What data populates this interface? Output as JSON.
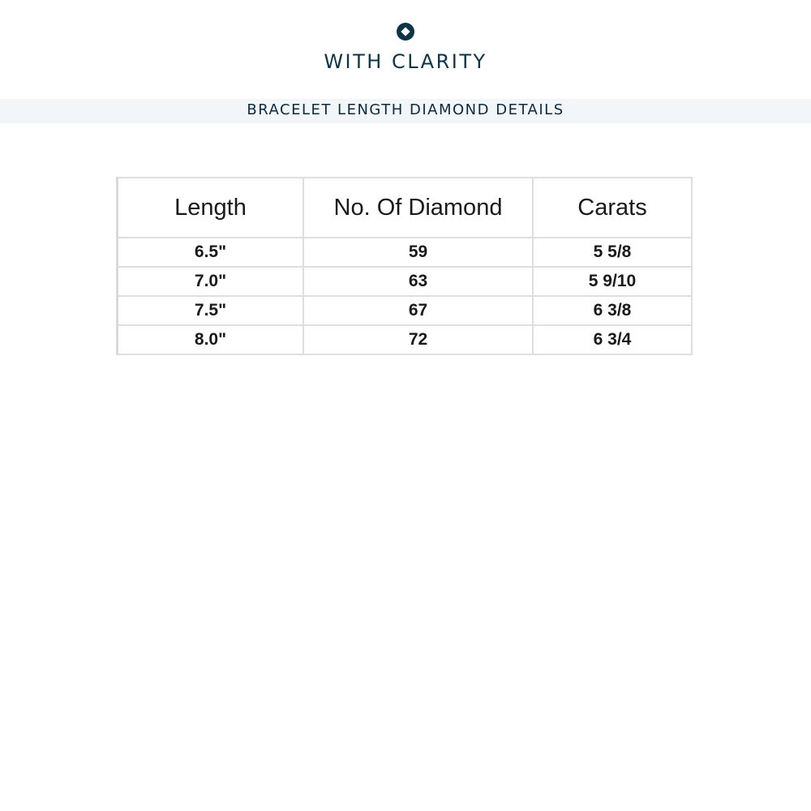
{
  "brand": {
    "name": "WITH CLARITY",
    "logo_icon": "diamond-in-circle-icon",
    "color": "#0d3447"
  },
  "section_title": "BRACELET LENGTH DIAMOND DETAILS",
  "table": {
    "headers": [
      "Length",
      "No. Of Diamond",
      "Carats"
    ],
    "rows": [
      [
        "6.5\"",
        "59",
        "5 5/8"
      ],
      [
        "7.0\"",
        "63",
        "5 9/10"
      ],
      [
        "7.5\"",
        "67",
        "6 3/8"
      ],
      [
        "8.0\"",
        "72",
        "6 3/4"
      ]
    ]
  }
}
